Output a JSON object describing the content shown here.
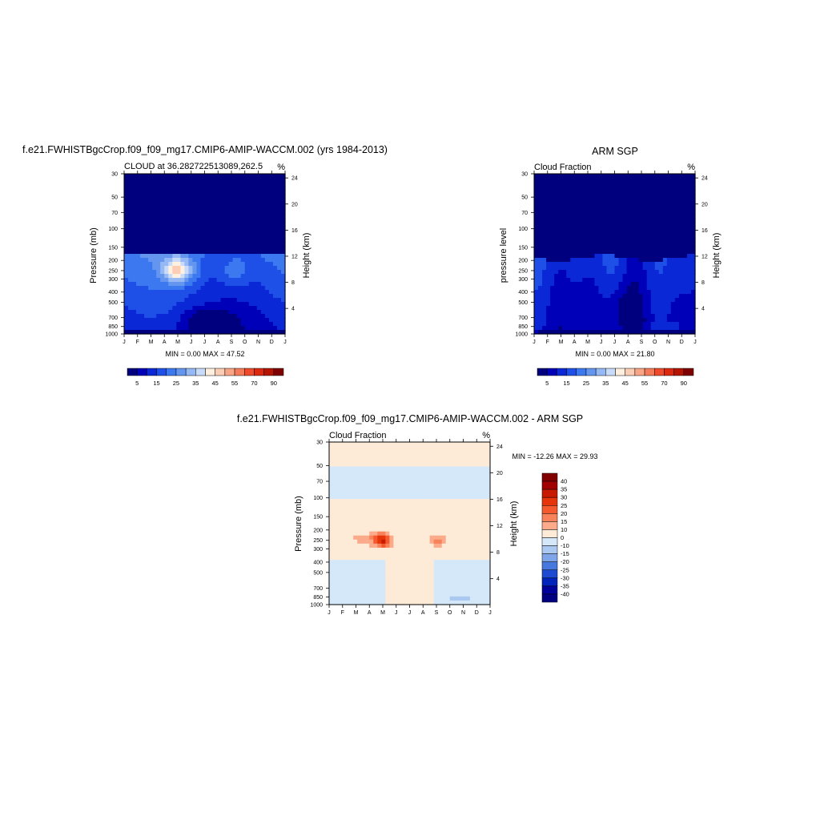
{
  "panels": [
    {
      "id": "model",
      "main_title": "f.e21.FWHISTBgcCrop.f09_f09_mg17.CMIP6-AMIP-WACCM.002 (yrs 1984-2013)",
      "left_string": "CLOUD at 36.282722513089,262.5",
      "right_string": "%",
      "ylabel_left": "Pressure (mb)",
      "ylabel_right": "Height (km)",
      "minmax": "MIN =   0.00 MAX =  47.52",
      "peak": {
        "x": 4.0,
        "p": 250
      },
      "cloud_base": 170
    },
    {
      "id": "obs",
      "main_title": "ARM SGP",
      "left_string": "Cloud Fraction",
      "right_string": "%",
      "ylabel_left": "pressure level",
      "ylabel_right": "Height (km)",
      "minmax": "MIN =   0.00 MAX =  21.80",
      "cloud_base": 190
    },
    {
      "id": "diff",
      "main_title": "f.e21.FWHISTBgcCrop.f09_f09_mg17.CMIP6-AMIP-WACCM.002 - ARM SGP",
      "left_string": "Cloud Fraction",
      "right_string": "%",
      "ylabel_left": "Pressure (mb)",
      "ylabel_right": "Height (km)",
      "minmax": "MIN = -12.26 MAX =  29.93"
    }
  ],
  "chart_data": [
    {
      "type": "heatmap",
      "title": "f.e21.FWHISTBgcCrop.f09_f09_mg17.CMIP6-AMIP-WACCM.002 (yrs 1984-2013)",
      "subtitle": "CLOUD at 36.282722513089,262.5",
      "x_ticks": [
        "J",
        "F",
        "M",
        "A",
        "M",
        "J",
        "J",
        "A",
        "S",
        "O",
        "N",
        "D",
        "J"
      ],
      "y_ticks": [
        30,
        50,
        70,
        100,
        150,
        200,
        250,
        300,
        400,
        500,
        700,
        850,
        1000
      ],
      "y_right_ticks": [
        24,
        20,
        16,
        12,
        8,
        4
      ],
      "ylabel": "Pressure (mb)",
      "ylabel_right": "Height (km)",
      "min": 0.0,
      "max": 47.52,
      "colorbar_labels": [
        "5",
        "15",
        "25",
        "35",
        "45",
        "55",
        "70",
        "90"
      ]
    },
    {
      "type": "heatmap",
      "title": "ARM SGP",
      "subtitle": "Cloud Fraction",
      "x_ticks": [
        "J",
        "F",
        "M",
        "A",
        "M",
        "J",
        "J",
        "A",
        "S",
        "O",
        "N",
        "D",
        "J"
      ],
      "y_ticks": [
        30,
        50,
        70,
        100,
        150,
        200,
        250,
        300,
        400,
        500,
        700,
        850,
        1000
      ],
      "y_right_ticks": [
        24,
        20,
        16,
        12,
        8,
        4
      ],
      "ylabel": "pressure level",
      "ylabel_right": "Height (km)",
      "min": 0.0,
      "max": 21.8,
      "colorbar_labels": [
        "5",
        "15",
        "25",
        "35",
        "45",
        "55",
        "70",
        "90"
      ]
    },
    {
      "type": "heatmap",
      "title": "f.e21.FWHISTBgcCrop.f09_f09_mg17.CMIP6-AMIP-WACCM.002 - ARM SGP",
      "subtitle": "Cloud Fraction",
      "x_ticks": [
        "J",
        "F",
        "M",
        "A",
        "M",
        "J",
        "J",
        "A",
        "S",
        "O",
        "N",
        "D",
        "J"
      ],
      "y_ticks": [
        30,
        50,
        70,
        100,
        150,
        200,
        250,
        300,
        400,
        500,
        700,
        850,
        1000
      ],
      "y_right_ticks": [
        24,
        20,
        16,
        12,
        8,
        4
      ],
      "ylabel": "Pressure (mb)",
      "ylabel_right": "Height (km)",
      "min": -12.26,
      "max": 29.93,
      "colorbar_labels": [
        "40",
        "35",
        "30",
        "25",
        "20",
        "15",
        "10",
        "0",
        "-10",
        "-15",
        "-20",
        "-25",
        "-30",
        "-35",
        "-40"
      ]
    }
  ],
  "colors": {
    "seq": [
      "#00007f",
      "#0000b8",
      "#0a28d6",
      "#1e50e8",
      "#3c78f0",
      "#6496f0",
      "#96b9f5",
      "#c8dcfa",
      "#fff0e0",
      "#fbcdb4",
      "#f8a586",
      "#f57a5a",
      "#f04a2c",
      "#dc280f",
      "#b41400",
      "#7f0000"
    ],
    "div": [
      "#800000",
      "#a00000",
      "#c81a00",
      "#e6350a",
      "#f55a2e",
      "#f8825a",
      "#fbaa8a",
      "#fdebd8",
      "#d5e8fa",
      "#aac8f0",
      "#7fa5e8",
      "#4678de",
      "#1e4ad2",
      "#0023bc",
      "#00009a",
      "#000080"
    ]
  }
}
